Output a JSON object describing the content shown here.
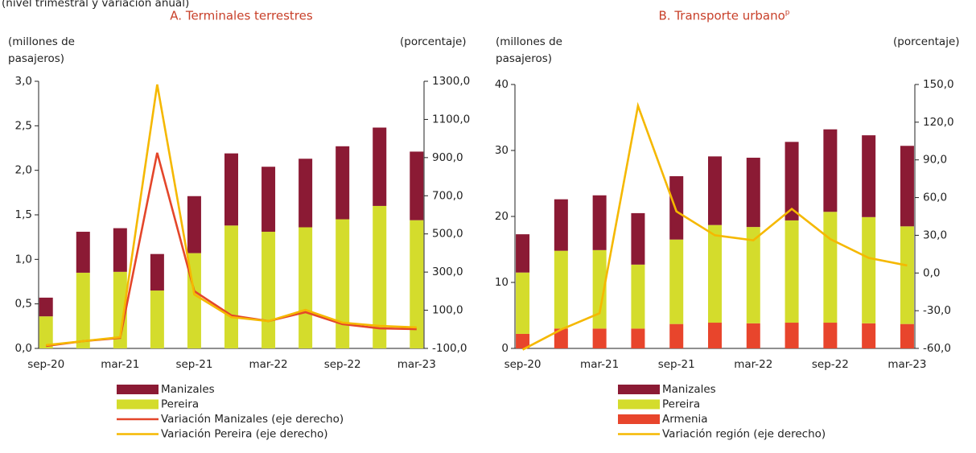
{
  "subtitle": "(nivel trimestral y variación anual)",
  "chart_data": [
    {
      "type": "bar",
      "stacked": true,
      "title": "A. Terminales terrestres",
      "y_label": [
        "(millones de",
        "pasajeros)"
      ],
      "y2_label": "(porcentaje)",
      "categories": [
        "sep-20",
        null,
        "mar-21",
        null,
        "sep-21",
        null,
        "mar-22",
        null,
        "sep-22",
        null,
        "mar-23"
      ],
      "series": [
        {
          "name": "Manizales",
          "color": "#8b1a34",
          "values": [
            0.21,
            0.46,
            0.49,
            0.41,
            0.64,
            0.81,
            0.73,
            0.77,
            0.82,
            0.88,
            0.77
          ]
        },
        {
          "name": "Pereira",
          "color": "#d4dc2c",
          "values": [
            0.36,
            0.85,
            0.86,
            0.65,
            1.07,
            1.38,
            1.31,
            1.36,
            1.45,
            1.6,
            1.44
          ]
        },
        {
          "name": "Variación Manizales (eje derecho)",
          "type": "line",
          "axis": "y2",
          "color": "#e4462a",
          "values": [
            -87,
            -62,
            -45,
            925,
            200,
            73,
            43,
            90,
            27,
            5,
            1
          ]
        },
        {
          "name": "Variación Pereira (eje derecho)",
          "type": "line",
          "axis": "y2",
          "color": "#f5b800",
          "values": [
            -83,
            -62,
            -41,
            1283,
            183,
            64,
            43,
            102,
            35,
            18,
            10
          ]
        }
      ],
      "ylim": [
        0,
        3
      ],
      "yticks": [
        {
          "value": 0,
          "label": "0,0"
        },
        {
          "value": 0.5,
          "label": "0,5"
        },
        {
          "value": 1,
          "label": "1,0"
        },
        {
          "value": 1.5,
          "label": "1,5"
        },
        {
          "value": 2,
          "label": "2,0"
        },
        {
          "value": 2.5,
          "label": "2,5"
        },
        {
          "value": 3,
          "label": "3,0"
        }
      ],
      "y2lim": [
        -100,
        1300
      ],
      "y2ticks": [
        {
          "value": -100,
          "label": "-100,0"
        },
        {
          "value": 100,
          "label": "100,0"
        },
        {
          "value": 300,
          "label": "300,0"
        },
        {
          "value": 500,
          "label": "500,0"
        },
        {
          "value": 700,
          "label": "700,0"
        },
        {
          "value": 900,
          "label": "900,0"
        },
        {
          "value": 1100,
          "label": "1100,0"
        },
        {
          "value": 1300,
          "label": "1300,0"
        }
      ]
    },
    {
      "type": "bar",
      "stacked": true,
      "title": "B. Transporte urbano",
      "title_note": "p",
      "y_label": [
        "(millones de",
        "pasajeros)"
      ],
      "y2_label": "(porcentaje)",
      "categories": [
        "sep-20",
        null,
        "mar-21",
        null,
        "sep-21",
        null,
        "mar-22",
        null,
        "sep-22",
        null,
        "mar-23"
      ],
      "series": [
        {
          "name": "Manizales",
          "color": "#8b1a34",
          "values": [
            5.8,
            7.8,
            8.3,
            7.8,
            9.6,
            10.4,
            10.5,
            11.9,
            12.5,
            12.4,
            12.2
          ]
        },
        {
          "name": "Pereira",
          "color": "#d4dc2c",
          "values": [
            9.3,
            11.8,
            11.9,
            9.7,
            12.8,
            14.8,
            14.6,
            15.5,
            16.8,
            16.1,
            14.8
          ]
        },
        {
          "name": "Armenia",
          "color": "#e8452c",
          "values": [
            2.2,
            3.0,
            3.0,
            3.0,
            3.7,
            3.9,
            3.8,
            3.9,
            3.9,
            3.8,
            3.7
          ]
        },
        {
          "name": "Variación región (eje derecho)",
          "type": "line",
          "axis": "y2",
          "color": "#f5b800",
          "values": [
            -61,
            -45,
            -32,
            133,
            49,
            30,
            26,
            51,
            27,
            12,
            6
          ]
        }
      ],
      "ylim": [
        0,
        40
      ],
      "yticks": [
        0,
        10,
        20,
        30,
        40
      ],
      "y2lim": [
        -60,
        150
      ],
      "y2ticks": [
        {
          "value": -60,
          "label": "-60,0"
        },
        {
          "value": -30,
          "label": "-30,0"
        },
        {
          "value": 0,
          "label": "0,0"
        },
        {
          "value": 30,
          "label": "30,0"
        },
        {
          "value": 60,
          "label": "60,0"
        },
        {
          "value": 90,
          "label": "90,0"
        },
        {
          "value": 120,
          "label": "120,0"
        },
        {
          "value": 150,
          "label": "150,0"
        }
      ]
    }
  ]
}
